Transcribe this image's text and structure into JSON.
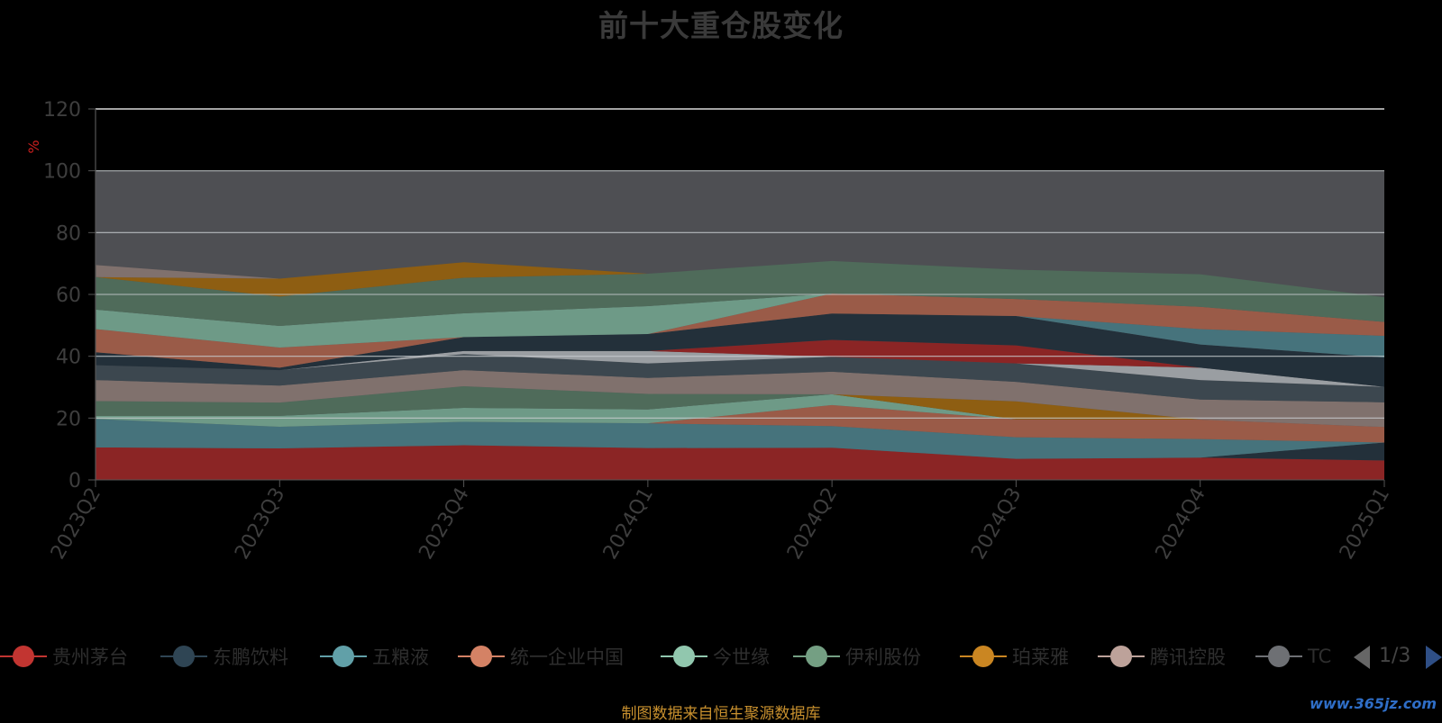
{
  "chart_data": {
    "type": "area",
    "title": "前十大重仓股变化",
    "ylabel": "%",
    "xlabel": "",
    "ylim": [
      0,
      120
    ],
    "yticks": [
      0,
      20,
      40,
      60,
      80,
      100,
      120
    ],
    "categories": [
      "2023Q2",
      "2023Q3",
      "2023Q4",
      "2024Q1",
      "2024Q2",
      "2024Q3",
      "2024Q4",
      "2025Q1"
    ],
    "stacked": true,
    "legend_position": "bottom",
    "series": [
      {
        "name": "贵州茅台",
        "color": "#8b2525",
        "values": [
          10.5,
          10.2,
          11.2,
          10.3,
          10.4,
          6.8,
          7.2,
          6.3
        ]
      },
      {
        "name": "东鹏饮料",
        "color": "#23303a",
        "values": [
          null,
          null,
          null,
          null,
          null,
          null,
          null,
          5.8
        ]
      },
      {
        "name": "五粮液",
        "color": "#46737c",
        "values": [
          9.2,
          7.0,
          7.6,
          8.0,
          7.0,
          7.0,
          6.0,
          null
        ]
      },
      {
        "name": "统一企业中国",
        "color": "#9a5b48",
        "values": [
          null,
          null,
          null,
          null,
          6.8,
          5.8,
          6.3,
          5.0
        ]
      },
      {
        "name": "今世缘",
        "color": "#6e9a87",
        "values": [
          1.0,
          3.5,
          4.5,
          4.5,
          3.5,
          null,
          null,
          null
        ]
      },
      {
        "name": "伊利股份",
        "color": "#4f6b5a",
        "values": [
          4.8,
          4.3,
          7.0,
          5.0,
          null,
          null,
          null,
          null
        ]
      },
      {
        "name": "珀莱雅",
        "color": "#8e5e12",
        "values": [
          null,
          null,
          null,
          null,
          null,
          5.8,
          null,
          null
        ]
      },
      {
        "name": "腾讯控股",
        "color": "#80716d",
        "values": [
          6.8,
          5.5,
          5.2,
          5.2,
          7.3,
          6.3,
          6.5,
          8.0
        ]
      },
      {
        "name": "TC",
        "color": "#3c474f",
        "values": [
          4.8,
          5.0,
          5.2,
          4.7,
          4.8,
          6.0,
          6.3,
          5.0
        ]
      }
    ],
    "extra_bands": [
      {
        "color": "#9a9ea2",
        "values": [
          null,
          null,
          1.0,
          4.0,
          null,
          null,
          4.0,
          null
        ]
      },
      {
        "color": "#8b2525",
        "values": [
          null,
          null,
          null,
          null,
          5.5,
          5.8,
          null,
          null
        ]
      },
      {
        "color": "#23303a",
        "values": [
          4.2,
          0.8,
          4.5,
          5.5,
          8.5,
          9.5,
          7.5,
          9.5
        ]
      },
      {
        "color": "#46737c",
        "values": [
          null,
          null,
          null,
          null,
          null,
          null,
          5.0,
          7.0
        ]
      },
      {
        "color": "#9a5b48",
        "values": [
          7.5,
          6.5,
          null,
          null,
          6.5,
          5.5,
          7.2,
          4.5
        ]
      },
      {
        "color": "#6e9a87",
        "values": [
          6.3,
          7.0,
          7.7,
          9.0,
          null,
          null,
          null,
          null
        ]
      },
      {
        "color": "#4f6b5a",
        "values": [
          10.5,
          9.5,
          11.5,
          10.5,
          10.5,
          9.5,
          10.5,
          8.0
        ]
      },
      {
        "color": "#8e5e12",
        "values": [
          null,
          5.8,
          5.0,
          null,
          null,
          null,
          null,
          null
        ]
      },
      {
        "color": "#80716d",
        "values": [
          3.9,
          null,
          null,
          null,
          null,
          null,
          null,
          null
        ]
      }
    ],
    "total_band": {
      "color": "#4e4f53",
      "top": 100
    }
  },
  "legend": {
    "items": [
      {
        "label": "贵州茅台",
        "color": "#c23531"
      },
      {
        "label": "东鹏饮料",
        "color": "#2f4554"
      },
      {
        "label": "五粮液",
        "color": "#61a0a8"
      },
      {
        "label": "统一企业中国",
        "color": "#d48265"
      },
      {
        "label": "今世缘",
        "color": "#91c7ae"
      },
      {
        "label": "伊利股份",
        "color": "#749f83"
      },
      {
        "label": "珀莱雅",
        "color": "#ca8622"
      },
      {
        "label": "腾讯控股",
        "color": "#bda29a"
      },
      {
        "label": "TC",
        "color": "#6e7074"
      }
    ],
    "page": "1/3"
  },
  "footer": {
    "source": "制图数据来自恒生聚源数据库",
    "watermark": "www.365jz.com"
  }
}
